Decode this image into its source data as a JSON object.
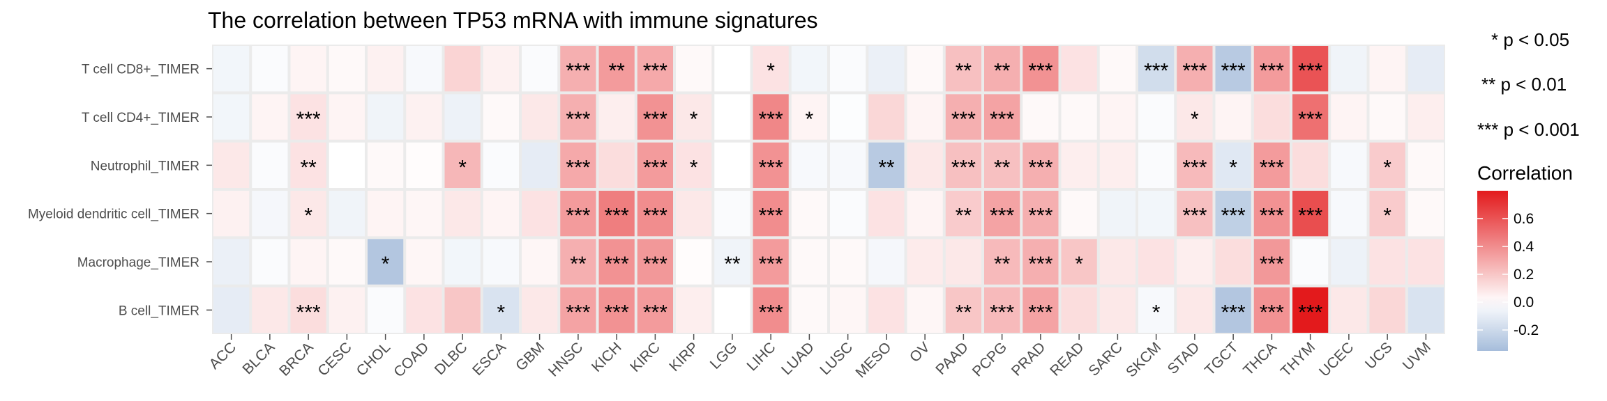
{
  "chart_data": {
    "type": "heatmap",
    "title": "The correlation between TP53 mRNA with immune signatures",
    "xlabel": "",
    "ylabel": "",
    "columns": [
      "ACC",
      "BLCA",
      "BRCA",
      "CESC",
      "CHOL",
      "COAD",
      "DLBC",
      "ESCA",
      "GBM",
      "HNSC",
      "KICH",
      "KIRC",
      "KIRP",
      "LGG",
      "LIHC",
      "LUAD",
      "LUSC",
      "MESO",
      "OV",
      "PAAD",
      "PCPG",
      "PRAD",
      "READ",
      "SARC",
      "SKCM",
      "STAD",
      "TGCT",
      "THCA",
      "THYM",
      "UCEC",
      "UCS",
      "UVM"
    ],
    "rows": [
      "T cell CD8+_TIMER",
      "T cell CD4+_TIMER",
      "Neutrophil_TIMER",
      "Myeloid dendritic cell_TIMER",
      "Macrophage_TIMER",
      "B cell_TIMER"
    ],
    "values": [
      [
        -0.05,
        -0.02,
        0.04,
        0.02,
        0.05,
        -0.03,
        0.15,
        0.05,
        -0.02,
        0.28,
        0.35,
        0.3,
        0.02,
        0.0,
        0.1,
        -0.05,
        -0.02,
        -0.08,
        0.02,
        0.22,
        0.28,
        0.38,
        0.1,
        0.02,
        -0.18,
        0.28,
        -0.28,
        0.35,
        0.6,
        -0.06,
        0.04,
        -0.1
      ],
      [
        -0.05,
        0.04,
        0.1,
        0.04,
        -0.06,
        0.05,
        -0.07,
        0.02,
        0.08,
        0.28,
        0.06,
        0.38,
        0.08,
        0.0,
        0.42,
        0.04,
        -0.01,
        0.14,
        0.04,
        0.28,
        0.32,
        0.02,
        0.02,
        0.04,
        -0.02,
        0.08,
        0.04,
        0.12,
        0.5,
        0.04,
        0.02,
        0.06
      ],
      [
        0.08,
        -0.02,
        0.1,
        0.0,
        0.02,
        0.01,
        0.25,
        -0.02,
        -0.1,
        0.3,
        0.12,
        0.35,
        0.1,
        0.0,
        0.38,
        -0.03,
        -0.03,
        -0.28,
        0.08,
        0.22,
        0.22,
        0.28,
        0.06,
        0.06,
        -0.02,
        0.24,
        -0.12,
        0.35,
        0.12,
        -0.03,
        0.18,
        0.02
      ],
      [
        0.05,
        -0.04,
        0.08,
        -0.06,
        0.04,
        0.03,
        0.08,
        0.04,
        0.1,
        0.35,
        0.45,
        0.4,
        0.08,
        -0.02,
        0.4,
        0.02,
        -0.02,
        0.1,
        0.04,
        0.18,
        0.32,
        0.28,
        0.02,
        -0.06,
        -0.05,
        0.22,
        -0.25,
        0.38,
        0.62,
        -0.03,
        0.18,
        0.02
      ],
      [
        -0.08,
        -0.02,
        0.04,
        0.02,
        -0.3,
        0.03,
        -0.05,
        -0.03,
        0.03,
        0.28,
        0.38,
        0.36,
        0.01,
        -0.06,
        0.35,
        0.02,
        0.02,
        -0.04,
        0.07,
        0.08,
        0.24,
        0.28,
        0.2,
        0.08,
        0.1,
        0.06,
        0.12,
        0.36,
        -0.02,
        -0.07,
        0.1,
        0.1
      ],
      [
        -0.1,
        0.08,
        0.12,
        0.05,
        -0.02,
        0.1,
        0.2,
        -0.15,
        0.08,
        0.32,
        0.38,
        0.35,
        0.06,
        0.0,
        0.4,
        0.02,
        0.03,
        0.1,
        0.03,
        0.2,
        0.24,
        0.32,
        0.12,
        0.08,
        -0.03,
        0.08,
        -0.3,
        0.38,
        0.8,
        0.08,
        0.14,
        -0.15
      ]
    ],
    "significance": [
      [
        "",
        "",
        "",
        "",
        "",
        "",
        "",
        "",
        "",
        "***",
        "**",
        "***",
        "",
        "",
        "*",
        "",
        "",
        "",
        "",
        "**",
        "**",
        "***",
        "",
        "",
        "***",
        "***",
        "***",
        "***",
        "***",
        "",
        "",
        ""
      ],
      [
        "",
        "",
        "***",
        "",
        "",
        "",
        "",
        "",
        "",
        "***",
        "",
        "***",
        "*",
        "",
        "***",
        "*",
        "",
        "",
        "",
        "***",
        "***",
        "",
        "",
        "",
        "",
        "*",
        "",
        "",
        "***",
        "",
        "",
        ""
      ],
      [
        "",
        "",
        "**",
        "",
        "",
        "",
        "*",
        "",
        "",
        "***",
        "",
        "***",
        "*",
        "",
        "***",
        "",
        "",
        "**",
        "",
        "***",
        "**",
        "***",
        "",
        "",
        "",
        "***",
        "*",
        "***",
        "",
        "",
        "*",
        ""
      ],
      [
        "",
        "",
        "*",
        "",
        "",
        "",
        "",
        "",
        "",
        "***",
        "***",
        "***",
        "",
        "",
        "***",
        "",
        "",
        "",
        "",
        "**",
        "***",
        "***",
        "",
        "",
        "",
        "***",
        "***",
        "***",
        "***",
        "",
        "*",
        ""
      ],
      [
        "",
        "",
        "",
        "",
        "*",
        "",
        "",
        "",
        "",
        "**",
        "***",
        "***",
        "",
        "**",
        "***",
        "",
        "",
        "",
        "",
        "",
        "**",
        "***",
        "*",
        "",
        "",
        "",
        "",
        "***",
        "",
        "",
        "",
        ""
      ],
      [
        "",
        "",
        "***",
        "",
        "",
        "",
        "",
        "*",
        "",
        "***",
        "***",
        "***",
        "",
        "",
        "***",
        "",
        "",
        "",
        "",
        "**",
        "***",
        "***",
        "",
        "",
        "*",
        "",
        "***",
        "***",
        "***",
        "",
        "",
        ""
      ]
    ],
    "legend": {
      "title": "Correlation",
      "ticks": [
        0.6,
        0.4,
        0.2,
        0.0,
        -0.2
      ],
      "tick_labels": [
        "0.6",
        "0.4",
        "0.2",
        "0.0",
        "-0.2"
      ],
      "range": [
        -0.35,
        0.8
      ],
      "low_color": "#a6bddb",
      "mid_color": "#ffffff",
      "high_color": "#e31a1c"
    },
    "significance_key": [
      "* p < 0.05",
      "** p < 0.01",
      "*** p < 0.001"
    ],
    "panel_background": "#ebebeb",
    "grid": true
  }
}
